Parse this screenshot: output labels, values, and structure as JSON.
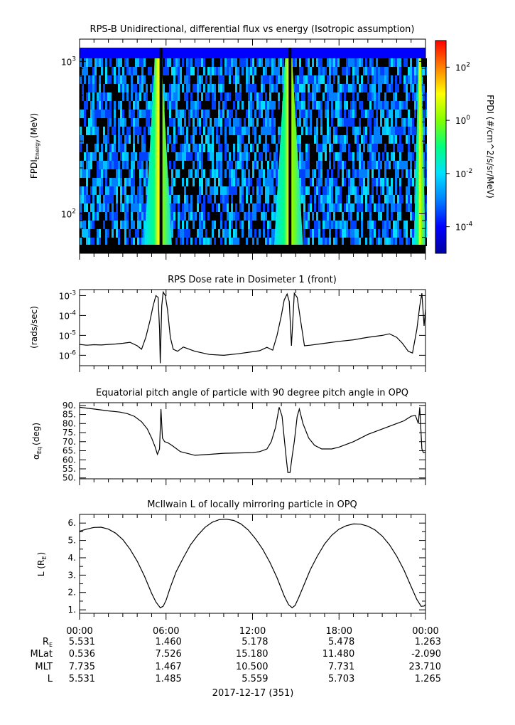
{
  "chart_data": [
    {
      "type": "heatmap",
      "title": "RPS-B  Unidirectional, differential flux vs energy (Isotropic assumption)",
      "ylabel_main": "FPDI",
      "ylabel_sub": "Energy",
      "ylabel_unit": "(MeV)",
      "yscale": "log",
      "ylim": [
        55,
        1400
      ],
      "y_ticks": [
        {
          "base": "10",
          "exp": "3",
          "value": 1000
        },
        {
          "base": "10",
          "exp": "2",
          "value": 100
        }
      ],
      "xlim_hours": [
        0,
        24
      ],
      "time_lines_hours": [
        5.65,
        14.6
      ],
      "time_spans_hours": [
        [
          4.5,
          6.4
        ],
        [
          13.5,
          15.5
        ],
        [
          23.2,
          24.0
        ]
      ],
      "colorbar": {
        "label": "FPDI (#/cm^2/s/sr/MeV)",
        "scale": "log",
        "range_exp": [
          -5,
          3
        ],
        "ticks": [
          {
            "base": "10",
            "exp": "2",
            "value_exp": 2
          },
          {
            "base": "10",
            "exp": "0",
            "value_exp": 0
          },
          {
            "base": "10",
            "exp": "-2",
            "value_exp": -2
          },
          {
            "base": "10",
            "exp": "-4",
            "value_exp": -4
          }
        ],
        "colors": [
          "#0000a0",
          "#0000ff",
          "#0080ff",
          "#00e0ff",
          "#00ff80",
          "#80ff00",
          "#ffff00",
          "#ff8000",
          "#ff0000"
        ]
      }
    },
    {
      "type": "line",
      "title": "RPS  Dose rate in Dosimeter 1 (front)",
      "ylabel": "(rads/sec)",
      "yscale": "log",
      "ylim": [
        3e-07,
        0.002
      ],
      "y_ticks": [
        {
          "base": "10",
          "exp": "-3",
          "value": 0.001
        },
        {
          "base": "10",
          "exp": "-4",
          "value": 0.0001
        },
        {
          "base": "10",
          "exp": "-5",
          "value": 1e-05
        },
        {
          "base": "10",
          "exp": "-6",
          "value": 1e-06
        }
      ],
      "x_hours": [
        0,
        0.5,
        1,
        1.5,
        2,
        2.5,
        3,
        3.5,
        4,
        4.3,
        4.6,
        4.9,
        5.1,
        5.3,
        5.45,
        5.55,
        5.6,
        5.7,
        5.8,
        5.95,
        6.1,
        6.3,
        6.5,
        6.8,
        7.2,
        8,
        9,
        10,
        11,
        12,
        12.5,
        13,
        13.4,
        13.7,
        14.0,
        14.2,
        14.4,
        14.55,
        14.7,
        14.9,
        15.1,
        15.3,
        15.6,
        16,
        17,
        18,
        19,
        20,
        21,
        21.5,
        22,
        22.4,
        22.8,
        23.1,
        23.4,
        23.6,
        23.75,
        23.9,
        24.0
      ],
      "values": [
        3.5e-06,
        3.2e-06,
        3.4e-06,
        3.3e-06,
        3.5e-06,
        3.7e-06,
        4e-06,
        4.5e-06,
        3e-06,
        2e-06,
        8e-06,
        6e-05,
        0.0003,
        0.001,
        0.0008,
        2e-05,
        4e-07,
        0.0003,
        0.0015,
        0.001,
        0.0002,
        8e-06,
        2e-06,
        1.6e-06,
        2.6e-06,
        1.6e-06,
        1.1e-06,
        1e-06,
        1.2e-06,
        1.5e-06,
        1.7e-06,
        2.5e-06,
        1.8e-06,
        1e-05,
        0.0001,
        0.0006,
        0.0012,
        0.0005,
        3e-06,
        0.0013,
        0.0008,
        8e-05,
        3e-06,
        3.2e-06,
        4e-06,
        5e-06,
        6e-06,
        8e-06,
        1e-05,
        1.2e-05,
        8e-06,
        4e-06,
        1.6e-06,
        1.3e-06,
        2e-05,
        0.0003,
        0.0013,
        3e-05,
        0.0002
      ],
      "xlim_hours": [
        0,
        24
      ]
    },
    {
      "type": "line",
      "title": "Equatorial pitch angle of particle with 90 degree pitch angle in OPQ",
      "ylabel_main": "α",
      "ylabel_sub": "Eq",
      "ylabel_unit": "(deg)",
      "ylim": [
        49.5,
        91.5
      ],
      "y_ticks": [
        "90.",
        "85.",
        "80.",
        "75.",
        "70.",
        "65.",
        "60.",
        "55.",
        "50."
      ],
      "y_tick_values": [
        90,
        85,
        80,
        75,
        70,
        65,
        60,
        55,
        50
      ],
      "x_hours": [
        0,
        1,
        2,
        2.8,
        3.3,
        3.8,
        4.3,
        4.7,
        5.0,
        5.25,
        5.4,
        5.55,
        5.65,
        5.75,
        5.9,
        6.1,
        6.4,
        7,
        8,
        9,
        10,
        11,
        12,
        12.5,
        13,
        13.3,
        13.6,
        13.85,
        14.05,
        14.2,
        14.35,
        14.45,
        14.6,
        14.75,
        14.9,
        15.1,
        15.25,
        15.5,
        15.9,
        16.3,
        16.8,
        17.5,
        18,
        19,
        20,
        21,
        22,
        22.5,
        23,
        23.3,
        23.5,
        23.6,
        23.75,
        23.85,
        24.0
      ],
      "values": [
        89,
        88,
        87,
        86.3,
        85.5,
        84,
        81,
        77,
        72,
        67,
        63,
        66,
        88,
        72,
        70,
        69.5,
        68,
        64.5,
        62.5,
        63,
        63.6,
        63.8,
        64,
        64.5,
        66,
        70,
        78,
        89,
        84,
        72,
        60,
        53,
        53,
        62,
        70,
        84,
        88,
        80,
        72,
        68,
        66,
        66,
        67,
        70,
        74,
        77,
        80,
        81.5,
        84,
        84.5,
        80,
        89,
        66,
        64,
        64
      ],
      "xlim_hours": [
        0,
        24
      ]
    },
    {
      "type": "line",
      "title": "McIlwain L of locally mirroring particle in OPQ",
      "ylabel_main": "L (R",
      "ylabel_sub": "E",
      "ylabel_unit": ")",
      "ylim": [
        0.8,
        6.5
      ],
      "y_ticks": [
        "6.",
        "5.",
        "4.",
        "3.",
        "2.",
        "1."
      ],
      "y_tick_values": [
        6,
        5,
        4,
        3,
        2,
        1
      ],
      "x_hours": [
        0,
        0.5,
        1,
        1.5,
        2,
        2.5,
        3,
        3.5,
        4,
        4.5,
        5,
        5.3,
        5.6,
        5.8,
        6,
        6.3,
        6.7,
        7.2,
        7.7,
        8.2,
        8.7,
        9.2,
        9.7,
        10.2,
        10.7,
        11.2,
        11.7,
        12.2,
        12.7,
        13.2,
        13.7,
        14.2,
        14.5,
        14.75,
        14.95,
        15.2,
        15.6,
        16,
        16.5,
        17,
        17.5,
        18,
        18.5,
        19,
        19.5,
        20,
        20.5,
        21,
        21.5,
        22,
        22.5,
        23,
        23.4,
        23.7,
        23.9,
        24.0
      ],
      "values": [
        5.531,
        5.65,
        5.75,
        5.76,
        5.65,
        5.42,
        5.05,
        4.5,
        3.8,
        2.95,
        1.95,
        1.45,
        1.12,
        1.2,
        1.55,
        2.3,
        3.2,
        4.0,
        4.75,
        5.3,
        5.75,
        6.05,
        6.2,
        6.22,
        6.15,
        5.95,
        5.6,
        5.1,
        4.5,
        3.75,
        2.85,
        1.8,
        1.3,
        1.12,
        1.25,
        1.7,
        2.5,
        3.3,
        4.1,
        4.8,
        5.3,
        5.65,
        5.85,
        5.95,
        5.94,
        5.82,
        5.6,
        5.25,
        4.75,
        4.1,
        3.3,
        2.35,
        1.6,
        1.2,
        1.22,
        1.3
      ],
      "xlim_hours": [
        0,
        24
      ]
    }
  ],
  "x_axis": {
    "tick_labels": [
      "00:00",
      "06:00",
      "12:00",
      "18:00",
      "00:00"
    ],
    "tick_hours": [
      0,
      6,
      12,
      18,
      24
    ],
    "minor_step_hours": 1,
    "date_label": "2017-12-17 (351)"
  },
  "ephemeris": {
    "row_labels": [
      {
        "main": "R",
        "sub": "E"
      },
      {
        "main": "MLat",
        "sub": ""
      },
      {
        "main": "MLT",
        "sub": ""
      },
      {
        "main": "L",
        "sub": ""
      }
    ],
    "rows": [
      [
        "5.531",
        "1.460",
        "5.178",
        "5.478",
        "1.263"
      ],
      [
        "0.536",
        "7.526",
        "15.180",
        "11.480",
        "-2.090"
      ],
      [
        "7.735",
        "1.467",
        "10.500",
        "7.731",
        "23.710"
      ],
      [
        "5.531",
        "1.485",
        "5.559",
        "5.703",
        "1.265"
      ]
    ]
  }
}
